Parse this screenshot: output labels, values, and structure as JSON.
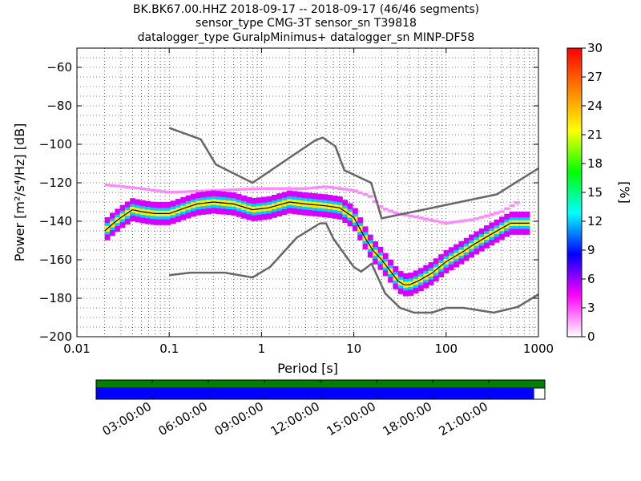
{
  "header": {
    "title_line1": "BK.BK67.00.HHZ   2018-09-17 -- 2018-09-17  (46/46 segments)",
    "title_line2": "sensor_type CMG-3T sensor_sn T39818",
    "title_line3": "datalogger_type GuralpMinimus+ datalogger_sn MINP-DF58"
  },
  "chart_data": {
    "type": "heatmap",
    "xlabel": "Period [s]",
    "ylabel": "Power [m²/s⁴/Hz] [dB]",
    "x_scale": "log",
    "xlim": [
      0.01,
      1000
    ],
    "ylim": [
      -200,
      -50
    ],
    "x_ticks": [
      0.01,
      0.1,
      1,
      10,
      100,
      1000
    ],
    "x_tick_labels": [
      "0.01",
      "0.1",
      "1",
      "10",
      "100",
      "1000"
    ],
    "y_ticks": [
      -60,
      -80,
      -100,
      -120,
      -140,
      -160,
      -180,
      -200
    ],
    "y_tick_labels": [
      "−60",
      "−80",
      "−100",
      "−120",
      "−140",
      "−160",
      "−180",
      "−200"
    ],
    "grid": true,
    "colorbar": {
      "label": "[%]",
      "range": [
        0,
        30
      ],
      "ticks": [
        0,
        3,
        6,
        9,
        12,
        15,
        18,
        21,
        24,
        27,
        30
      ],
      "tick_labels": [
        "0",
        "3",
        "6",
        "9",
        "12",
        "15",
        "18",
        "21",
        "24",
        "27",
        "30"
      ],
      "colors": [
        "#ffffff",
        "#ff00ff",
        "#0000ff",
        "#00ffff",
        "#00ff00",
        "#ffff00",
        "#ff8000",
        "#ff0000"
      ]
    },
    "noise_models": {
      "color": "#666666",
      "nhnm": {
        "x": [
          0.1,
          0.22,
          0.32,
          0.8,
          3.8,
          4.6,
          6.3,
          7.9,
          15.4,
          20,
          354.8,
          1000
        ],
        "y": [
          -91.5,
          -97.4,
          -110.5,
          -120,
          -98,
          -96.5,
          -101,
          -113.5,
          -120,
          -138.5,
          -126,
          -112.5
        ]
      },
      "nlnm": {
        "x": [
          0.1,
          0.17,
          0.4,
          0.8,
          1.24,
          2.4,
          4.3,
          5,
          6,
          10,
          12,
          15.6,
          21.9,
          31.6,
          45,
          70,
          101,
          154,
          328,
          600,
          1000
        ],
        "y": [
          -168,
          -166.7,
          -166.7,
          -169.2,
          -163.7,
          -148.6,
          -141.1,
          -141.1,
          -149,
          -163.8,
          -166.2,
          -162.1,
          -177.5,
          -185,
          -187.5,
          -187.5,
          -185,
          -185,
          -187.5,
          -184.5,
          -178
        ]
      }
    },
    "series": [
      {
        "name": "",
        "periods": [
          0.02,
          0.025,
          0.03,
          0.04,
          0.05,
          0.07,
          0.1,
          0.15,
          0.2,
          0.3,
          0.5,
          0.8,
          1.2,
          2,
          3,
          5,
          7,
          10,
          13,
          16,
          20,
          25,
          30,
          35,
          40,
          50,
          70,
          100,
          150,
          200,
          300,
          500,
          800
        ],
        "power_db": [
          -145,
          -141,
          -138,
          -134,
          -135,
          -136,
          -136,
          -133,
          -131,
          -130,
          -131,
          -134,
          -133,
          -130,
          -131,
          -132,
          -133,
          -138,
          -148,
          -155,
          -160,
          -166,
          -171,
          -173,
          -173,
          -171,
          -167,
          -161,
          -156,
          -152,
          -147,
          -141,
          -141
        ]
      }
    ],
    "spread_bands": [
      {
        "level": 5,
        "offset_db": 6
      },
      {
        "level": 12,
        "offset_db": 3
      },
      {
        "level": 22,
        "offset_db": 1.5
      }
    ],
    "upper_outlier_band": {
      "periods": [
        0.02,
        0.05,
        0.1,
        0.3,
        1,
        3,
        5,
        10,
        15,
        20,
        30,
        50,
        100,
        200,
        400,
        600
      ],
      "power_db": [
        -121,
        -123,
        -125,
        -124,
        -123,
        -123,
        -122,
        -124,
        -127,
        -133,
        -136,
        -138,
        -141,
        -139,
        -135,
        -130
      ]
    }
  },
  "time_coverage": {
    "colors": {
      "data": "#008000",
      "segments": "#0000ff"
    },
    "coverage_fraction": 0.976,
    "labels": [
      "03:00:00",
      "06:00:00",
      "09:00:00",
      "12:00:00",
      "15:00:00",
      "18:00:00",
      "21:00:00"
    ]
  }
}
